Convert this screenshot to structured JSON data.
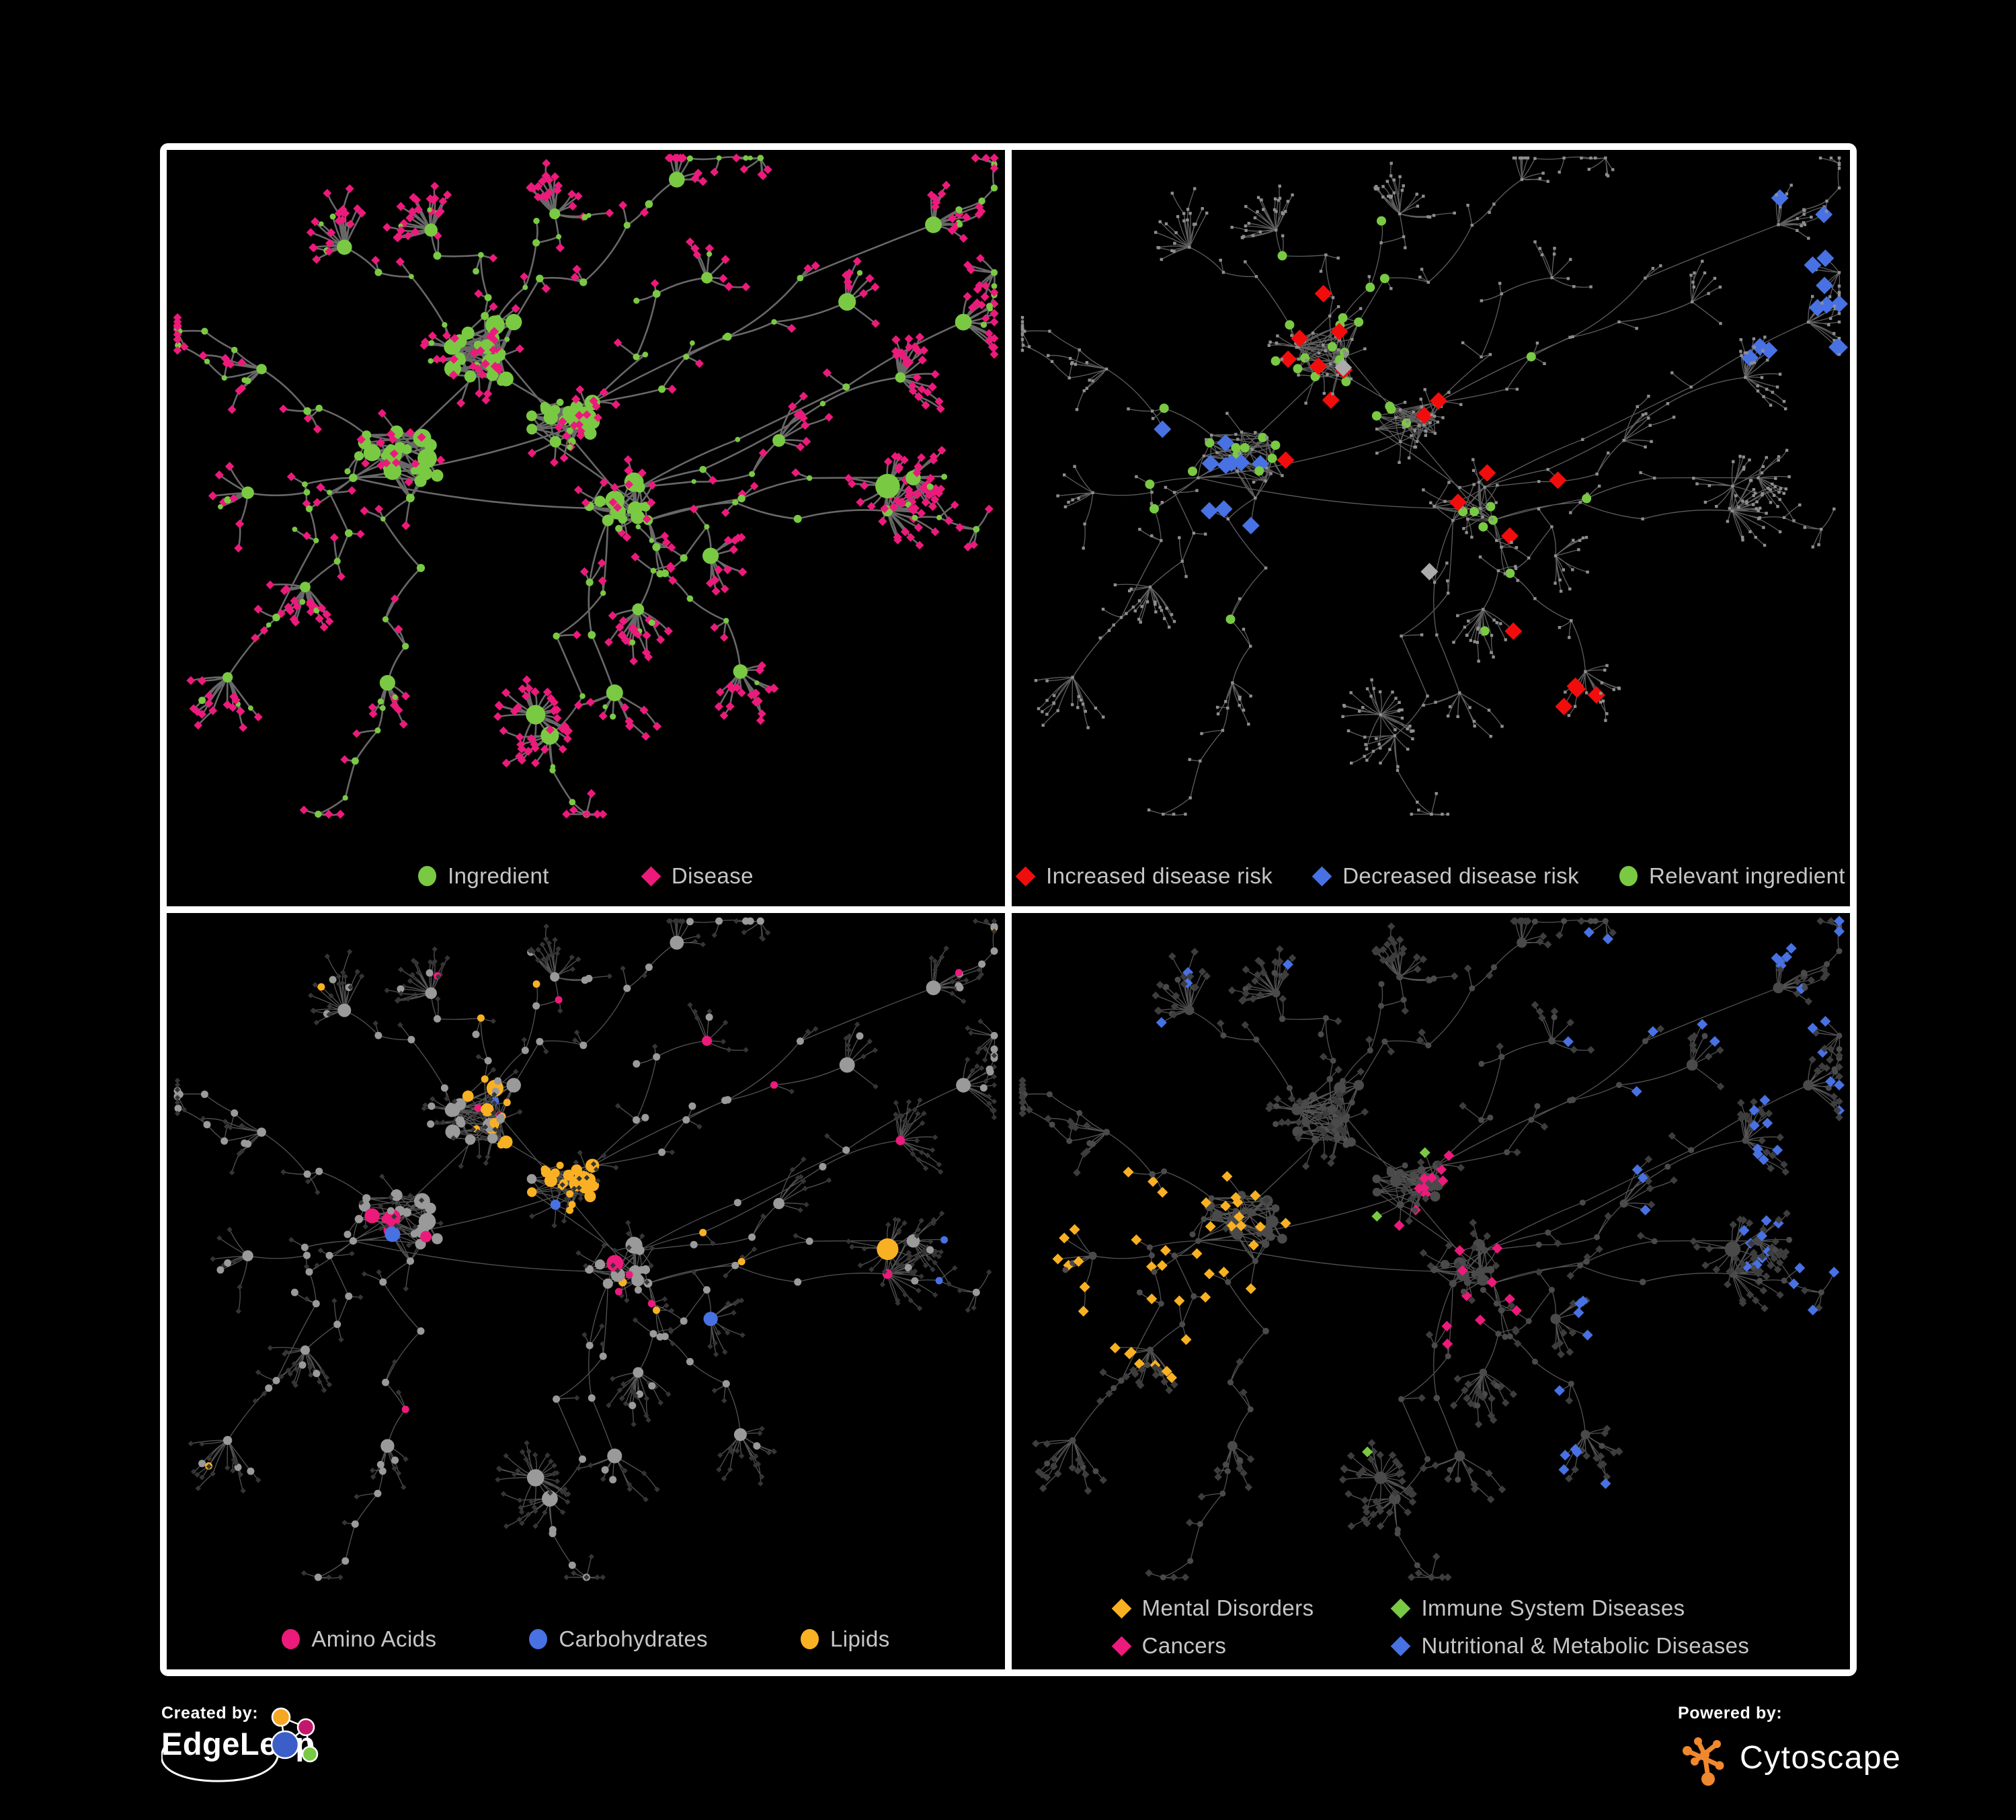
{
  "page": {
    "background": "#000000",
    "frame_color": "#ffffff"
  },
  "panels": [
    {
      "name": "ingredient-disease-network",
      "legend_layout": "wide",
      "legend": [
        {
          "label": "Ingredient",
          "shape": "circle",
          "color": "#7AC943"
        },
        {
          "label": "Disease",
          "shape": "diamond",
          "color": "#EC1A7B"
        }
      ]
    },
    {
      "name": "disease-risk-network",
      "legend_layout": "mid",
      "legend": [
        {
          "label": "Increased disease risk",
          "shape": "diamond",
          "color": "#F20D0D"
        },
        {
          "label": "Decreased disease risk",
          "shape": "diamond",
          "color": "#4871E3"
        },
        {
          "label": "Relevant ingredient",
          "shape": "circle",
          "color": "#7AC943"
        }
      ]
    },
    {
      "name": "nutrient-category-network",
      "legend_layout": "wide",
      "legend": [
        {
          "label": "Amino Acids",
          "shape": "circle",
          "color": "#EC1A7B"
        },
        {
          "label": "Carbohydrates",
          "shape": "circle",
          "color": "#4871E3"
        },
        {
          "label": "Lipids",
          "shape": "circle",
          "color": "#F9B123"
        }
      ]
    },
    {
      "name": "disease-category-network",
      "legend_layout": "grid2",
      "legend": [
        {
          "label": "Mental Disorders",
          "shape": "diamond",
          "color": "#F9B123"
        },
        {
          "label": "Immune System Diseases",
          "shape": "diamond",
          "color": "#7AC943"
        },
        {
          "label": "Cancers",
          "shape": "diamond",
          "color": "#EC1A7B"
        },
        {
          "label": "Nutritional & Metabolic Diseases",
          "shape": "diamond",
          "color": "#4871E3"
        }
      ]
    }
  ],
  "footer": {
    "created_by_label": "Created by:",
    "created_by_name": "EdgeLeap",
    "powered_by_label": "Powered by:",
    "powered_by_name": "Cytoscape",
    "edgeleap_logo_colors": [
      "#F5A623",
      "#C4176B",
      "#3B5EC9",
      "#7AC943"
    ],
    "cytoscape_logo_color": "#F0882D"
  },
  "network": {
    "seed": 1337,
    "panel_styles": [
      {
        "mode": "typed",
        "edge_color": "#6E6E6E",
        "edge_width": 2.6,
        "circle_color": "#7AC943",
        "diamond_color": "#EC1A7B"
      },
      {
        "mode": "risk",
        "edge_color": "#636363",
        "edge_width": 1.3,
        "base_color": "#8E8E8E",
        "highlights": {
          "increased": "#F20D0D",
          "decreased": "#4871E3",
          "other": "#ABABAB",
          "ingredient": "#7AC943"
        }
      },
      {
        "mode": "nutrient",
        "edge_color": "#575757",
        "edge_width": 1.3,
        "circle_color": "#9A9A9A",
        "diamond_color": "#353535",
        "highlights": {
          "amino": "#EC1A7B",
          "carb": "#4871E3",
          "lipid": "#F9B123"
        }
      },
      {
        "mode": "category",
        "edge_color": "#575757",
        "edge_width": 1.3,
        "circle_color": "#4A4A4A",
        "diamond_color": "#3D3D3D",
        "highlights": {
          "mental": "#F9B123",
          "immune": "#7AC943",
          "cancer": "#EC1A7B",
          "metabolic": "#4871E3"
        }
      }
    ]
  }
}
